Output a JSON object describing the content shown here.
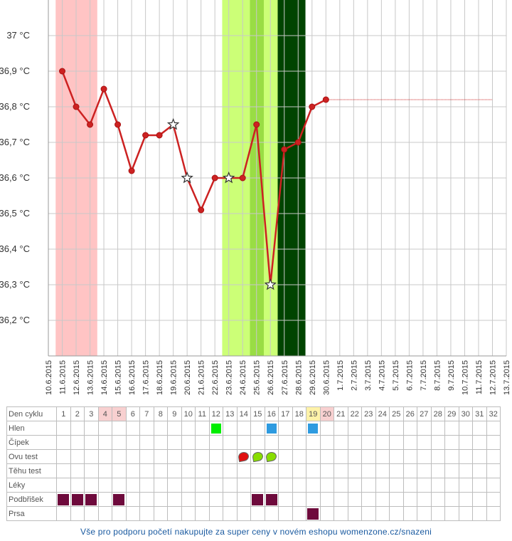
{
  "chart_data": {
    "type": "line",
    "ylim": [
      36.1,
      37.1
    ],
    "y_ticks": [
      "36,2 °C",
      "36,3 °C",
      "36,4 °C",
      "36,5 °C",
      "36,6 °C",
      "36,7 °C",
      "36,8 °C",
      "36,9 °C",
      "37 °C"
    ],
    "y_tick_values": [
      36.2,
      36.3,
      36.4,
      36.5,
      36.6,
      36.7,
      36.8,
      36.9,
      37.0
    ],
    "dates": [
      "10.6.2015",
      "11.6.2015",
      "12.6.2015",
      "13.6.2015",
      "14.6.2015",
      "15.6.2015",
      "16.6.2015",
      "17.6.2015",
      "18.6.2015",
      "19.6.2015",
      "20.6.2015",
      "21.6.2015",
      "22.6.2015",
      "23.6.2015",
      "24.6.2015",
      "25.6.2015",
      "26.6.2015",
      "27.6.2015",
      "28.6.2015",
      "29.6.2015",
      "30.6.2015",
      "1.7.2015",
      "2.7.2015",
      "3.7.2015",
      "4.7.2015",
      "5.7.2015",
      "6.7.2015",
      "7.7.2015",
      "8.7.2015",
      "9.7.2015",
      "10.7.2015",
      "11.7.2015",
      "12.7.2015",
      "13.7.2015"
    ],
    "series": [
      {
        "x": [
          "11.6.2015",
          "12.6.2015",
          "13.6.2015",
          "14.6.2015",
          "15.6.2015",
          "16.6.2015",
          "17.6.2015",
          "18.6.2015",
          "19.6.2015",
          "20.6.2015",
          "21.6.2015",
          "22.6.2015",
          "23.6.2015",
          "24.6.2015",
          "25.6.2015",
          "26.6.2015",
          "27.6.2015",
          "28.6.2015",
          "29.6.2015",
          "30.6.2015"
        ],
        "values": [
          36.9,
          36.8,
          36.75,
          36.85,
          36.75,
          36.62,
          36.72,
          36.72,
          36.75,
          36.6,
          36.51,
          36.6,
          36.6,
          36.6,
          36.75,
          36.3,
          36.68,
          36.7,
          36.8,
          36.82
        ],
        "markers": [
          "dot",
          "dot",
          "dot",
          "dot",
          "dot",
          "dot",
          "dot",
          "dot",
          "star",
          "star",
          "dot",
          "dot",
          "star",
          "dot",
          "dot",
          "star",
          "dot",
          "dot",
          "dot",
          "dot"
        ],
        "color": "#cc2222"
      }
    ],
    "reference_line": {
      "value": 36.82,
      "from": "30.6.2015",
      "to": "12.7.2015",
      "color": "#cc2222"
    },
    "bands": [
      {
        "from": "11.6.2015",
        "to": "13.6.2015",
        "color": "#ffc4c4"
      },
      {
        "from": "23.6.2015",
        "to": "27.6.2015",
        "color": "#ccff77"
      },
      {
        "from": "25.6.2015",
        "to": "25.6.2015",
        "color": "#99dd44"
      },
      {
        "from": "27.6.2015",
        "to": "28.6.2015",
        "color": "#004400"
      }
    ],
    "grid": true
  },
  "table": {
    "header_label": "Den cyklu",
    "days": [
      "1",
      "2",
      "3",
      "4",
      "5",
      "6",
      "7",
      "8",
      "9",
      "10",
      "11",
      "12",
      "13",
      "14",
      "15",
      "16",
      "17",
      "18",
      "19",
      "20",
      "21",
      "22",
      "23",
      "24",
      "25",
      "26",
      "27",
      "28",
      "29",
      "30",
      "31",
      "32"
    ],
    "day_highlights": {
      "4": "red",
      "5": "red",
      "19": "yellow",
      "20": "red"
    },
    "rows": [
      {
        "label": "Hlen",
        "marks": {
          "12": "green",
          "16": "blue",
          "19": "blue"
        }
      },
      {
        "label": "Čípek",
        "marks": {}
      },
      {
        "label": "Ovu test",
        "marks": {
          "14": "drop-red",
          "15": "drop-green",
          "16": "drop-green"
        }
      },
      {
        "label": "Těhu test",
        "marks": {}
      },
      {
        "label": "Léky",
        "marks": {}
      },
      {
        "label": "Podbřišek",
        "marks": {
          "1": "purple",
          "2": "purple",
          "3": "purple",
          "5": "purple",
          "15": "purple",
          "16": "purple"
        }
      },
      {
        "label": "Prsa",
        "marks": {
          "19": "purple"
        }
      }
    ]
  },
  "footer": {
    "text": "Vše pro podporu početí nakupujte za super ceny v novém eshopu womenzone.cz/snazeni"
  }
}
